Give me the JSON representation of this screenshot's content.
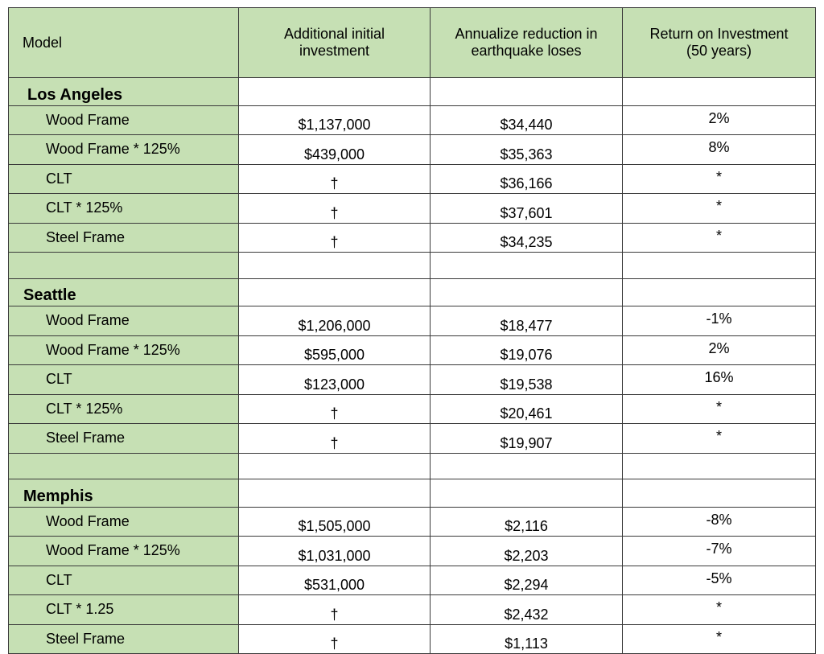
{
  "header": {
    "model": "Model",
    "investment_line1": "Additional initial",
    "investment_line2": "investment",
    "reduction_line1": "Annualize reduction in",
    "reduction_line2": "earthquake loses",
    "roi_line1": "Return on Investment",
    "roi_line2": "(50 years)"
  },
  "sections": [
    {
      "city": "Los Angeles",
      "rows": [
        {
          "model": "Wood Frame",
          "investment": "$1,137,000",
          "reduction": "$34,440",
          "roi": "2%"
        },
        {
          "model": "Wood Frame * 125%",
          "investment": "$439,000",
          "reduction": "$35,363",
          "roi": "8%"
        },
        {
          "model": "CLT",
          "investment": "†",
          "reduction": "$36,166",
          "roi": "*"
        },
        {
          "model": "CLT * 125%",
          "investment": "†",
          "reduction": "$37,601",
          "roi": "*"
        },
        {
          "model": "Steel Frame",
          "investment": "†",
          "reduction": "$34,235",
          "roi": "*"
        }
      ]
    },
    {
      "city": "Seattle",
      "rows": [
        {
          "model": "Wood Frame",
          "investment": "$1,206,000",
          "reduction": "$18,477",
          "roi": "-1%"
        },
        {
          "model": "Wood Frame * 125%",
          "investment": "$595,000",
          "reduction": "$19,076",
          "roi": "2%"
        },
        {
          "model": "CLT",
          "investment": "$123,000",
          "reduction": "$19,538",
          "roi": "16%"
        },
        {
          "model": "CLT * 125%",
          "investment": "†",
          "reduction": "$20,461",
          "roi": "*"
        },
        {
          "model": "Steel Frame",
          "investment": "†",
          "reduction": "$19,907",
          "roi": "*"
        }
      ]
    },
    {
      "city": "Memphis",
      "rows": [
        {
          "model": "Wood Frame",
          "investment": "$1,505,000",
          "reduction": "$2,116",
          "roi": "-8%"
        },
        {
          "model": "Wood Frame * 125%",
          "investment": "$1,031,000",
          "reduction": "$2,203",
          "roi": "-7%"
        },
        {
          "model": "CLT",
          "investment": "$531,000",
          "reduction": "$2,294",
          "roi": "-5%"
        },
        {
          "model": "CLT * 1.25",
          "investment": "†",
          "reduction": "$2,432",
          "roi": "*"
        },
        {
          "model": "Steel Frame",
          "investment": "†",
          "reduction": "$1,113",
          "roi": "*"
        }
      ]
    }
  ],
  "colors": {
    "model_column_fill": "#c6e0b4",
    "border": "#3a3a3a"
  }
}
